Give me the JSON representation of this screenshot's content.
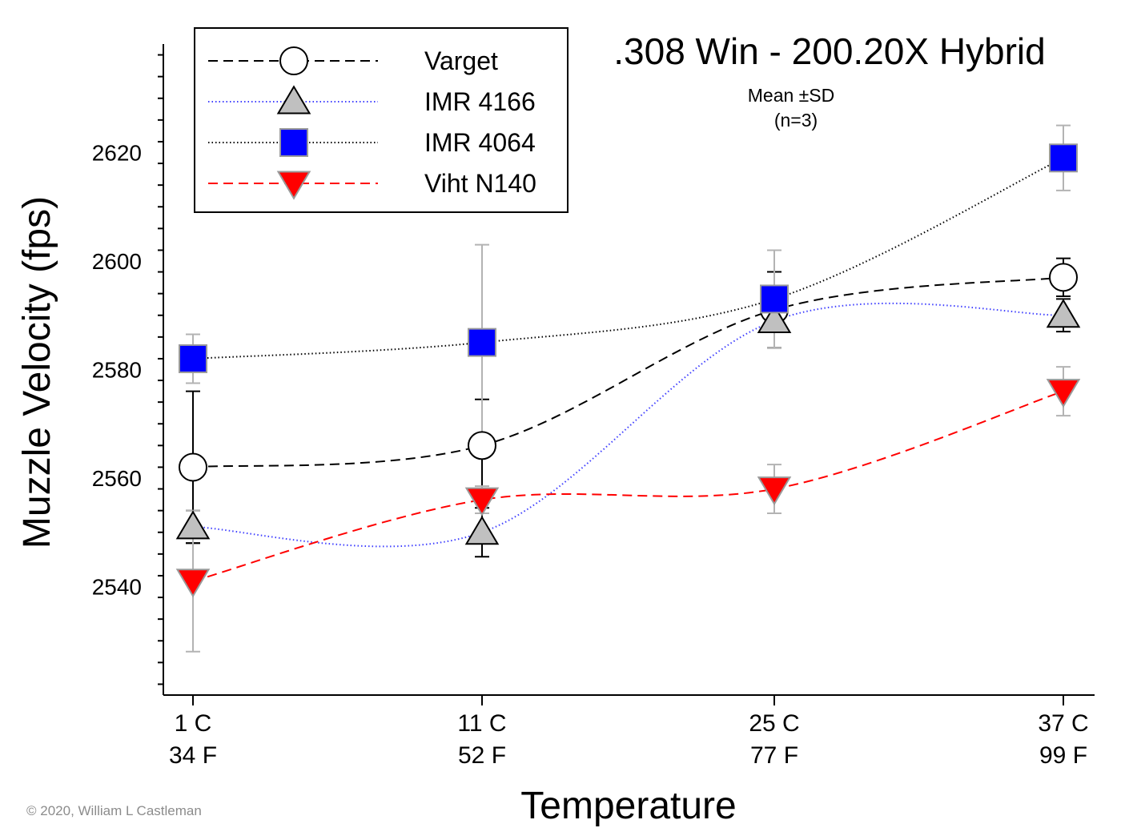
{
  "chart_data": {
    "type": "line",
    "title": ".308 Win - 200.20X Hybrid",
    "annotation_lines": [
      "Mean ±SD",
      "(n=3)"
    ],
    "xlabel": "Temperature",
    "ylabel": "Muzzle Velocity (fps)",
    "categories": [
      {
        "c": "1 C",
        "f": "34 F"
      },
      {
        "c": "11 C",
        "f": "52 F"
      },
      {
        "c": "25 C",
        "f": "77 F"
      },
      {
        "c": "37 C",
        "f": "99 F"
      }
    ],
    "ylim": [
      2520,
      2640
    ],
    "yticks": [
      2540,
      2560,
      2580,
      2600,
      2620
    ],
    "legend_position": "top-left",
    "series": [
      {
        "name": "Varget",
        "marker": "circle",
        "fill": "#ffffff",
        "stroke": "#000000",
        "line_color": "#000000",
        "line_style": "dashed",
        "values": [
          2562,
          2566,
          2591,
          2597
        ],
        "sd": [
          14,
          8.5,
          7,
          3.5
        ]
      },
      {
        "name": "IMR 4166",
        "marker": "triangle-up",
        "fill": "#c0c0c0",
        "stroke": "#000000",
        "line_color": "#4040ff",
        "line_style": "dotted",
        "values": [
          2551,
          2550,
          2589,
          2590
        ],
        "sd": [
          3,
          4.5,
          5,
          3
        ]
      },
      {
        "name": "IMR 4064",
        "marker": "square",
        "fill": "#0000ff",
        "stroke": "#9a9a9a",
        "line_color": "#000000",
        "line_style": "dotted",
        "values": [
          2582,
          2585,
          2593,
          2619
        ],
        "sd": [
          4.5,
          18,
          9,
          6
        ]
      },
      {
        "name": "Viht N140",
        "marker": "triangle-down",
        "fill": "#ff0000",
        "stroke": "#9a9a9a",
        "line_color": "#ff0000",
        "line_style": "dashed",
        "values": [
          2541,
          2556,
          2558,
          2576
        ],
        "sd": [
          13,
          2.5,
          4.5,
          4.5
        ]
      }
    ]
  },
  "copyright": "© 2020, William L Castleman"
}
